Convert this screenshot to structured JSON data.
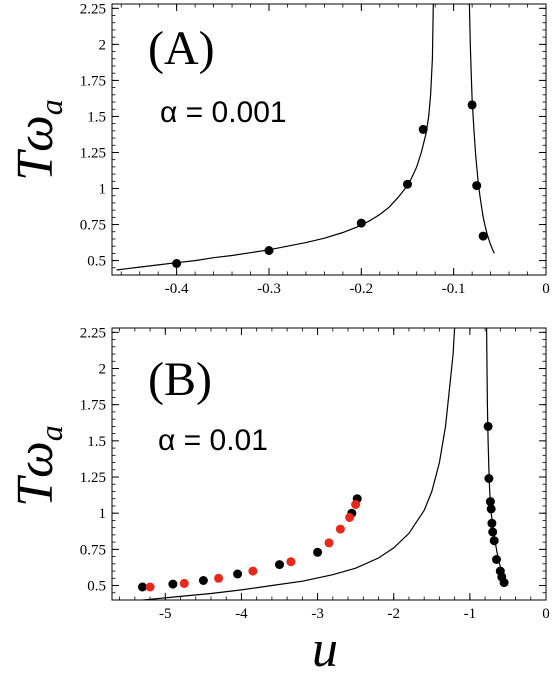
{
  "chart_data": [
    {
      "type": "line",
      "panel_label": "(A)",
      "annotation": "α = 0.001",
      "ylabel": "Tω",
      "ylabel_sub": "a",
      "xlabel": "",
      "xlim": [
        -0.47,
        0.0
      ],
      "ylim": [
        0.4,
        2.28
      ],
      "xticks": [
        -0.4,
        -0.3,
        -0.2,
        -0.1,
        0
      ],
      "xtick_labels": [
        "-0.4",
        "-0.3",
        "-0.2",
        "-0.1",
        "0"
      ],
      "yticks": [
        0.5,
        0.75,
        1,
        1.25,
        1.5,
        1.75,
        2,
        2.25
      ],
      "ytick_labels": [
        "0.5",
        "0.75",
        "1",
        "1.25",
        "1.5",
        "1.75",
        "2",
        "2.25"
      ],
      "series": [
        {
          "kind": "curve",
          "color": "#000000",
          "x": [
            -0.465,
            -0.44,
            -0.42,
            -0.4,
            -0.38,
            -0.36,
            -0.34,
            -0.32,
            -0.3,
            -0.28,
            -0.26,
            -0.24,
            -0.22,
            -0.2,
            -0.19,
            -0.18,
            -0.17,
            -0.16,
            -0.15,
            -0.145,
            -0.14,
            -0.135,
            -0.13,
            -0.127,
            -0.125,
            -0.123,
            -0.122
          ],
          "y": [
            0.435,
            0.455,
            0.47,
            0.485,
            0.5,
            0.52,
            0.535,
            0.555,
            0.575,
            0.6,
            0.625,
            0.655,
            0.695,
            0.745,
            0.78,
            0.82,
            0.87,
            0.94,
            1.02,
            1.08,
            1.15,
            1.25,
            1.38,
            1.5,
            1.65,
            1.9,
            2.28
          ]
        },
        {
          "kind": "curve",
          "color": "#000000",
          "x": [
            -0.083,
            -0.082,
            -0.081,
            -0.08,
            -0.078,
            -0.076,
            -0.074,
            -0.072,
            -0.07,
            -0.068,
            -0.066,
            -0.064,
            -0.062,
            -0.06,
            -0.058,
            -0.056
          ],
          "y": [
            2.28,
            2.0,
            1.8,
            1.62,
            1.4,
            1.22,
            1.08,
            0.97,
            0.88,
            0.8,
            0.74,
            0.69,
            0.65,
            0.61,
            0.58,
            0.55
          ]
        },
        {
          "kind": "points",
          "color": "#000000",
          "x": [
            -0.4,
            -0.3,
            -0.2,
            -0.15,
            -0.133,
            -0.08,
            -0.075,
            -0.068
          ],
          "y": [
            0.48,
            0.57,
            0.76,
            1.03,
            1.41,
            1.58,
            1.02,
            0.67
          ]
        }
      ]
    },
    {
      "type": "line",
      "panel_label": "(B)",
      "annotation": "α = 0.01",
      "ylabel": "Tω",
      "ylabel_sub": "a",
      "xlabel": "u",
      "xlim": [
        -5.7,
        0.0
      ],
      "ylim": [
        0.4,
        2.28
      ],
      "xticks": [
        -5,
        -4,
        -3,
        -2,
        -1,
        0
      ],
      "xtick_labels": [
        "-5",
        "-4",
        "-3",
        "-2",
        "-1",
        "0"
      ],
      "yticks": [
        0.5,
        0.75,
        1,
        1.25,
        1.5,
        1.75,
        2,
        2.25
      ],
      "ytick_labels": [
        "0.5",
        "0.75",
        "1",
        "1.25",
        "1.5",
        "1.75",
        "2",
        "2.25"
      ],
      "series": [
        {
          "kind": "curve",
          "color": "#000000",
          "x": [
            -5.6,
            -5.2,
            -4.8,
            -4.4,
            -4.0,
            -3.6,
            -3.2,
            -2.8,
            -2.5,
            -2.2,
            -2.0,
            -1.8,
            -1.6,
            -1.5,
            -1.4,
            -1.32,
            -1.26,
            -1.22,
            -1.2
          ],
          "y": [
            0.385,
            0.405,
            0.425,
            0.445,
            0.47,
            0.5,
            0.53,
            0.575,
            0.62,
            0.69,
            0.76,
            0.86,
            1.02,
            1.15,
            1.35,
            1.6,
            1.9,
            2.1,
            2.28
          ]
        },
        {
          "kind": "curve",
          "color": "#000000",
          "x": [
            -0.78,
            -0.775,
            -0.77,
            -0.76,
            -0.75,
            -0.74,
            -0.72,
            -0.7,
            -0.68,
            -0.66,
            -0.64,
            -0.62,
            -0.6,
            -0.58,
            -0.56,
            -0.54,
            -0.52
          ],
          "y": [
            2.28,
            2.0,
            1.75,
            1.5,
            1.3,
            1.15,
            1.0,
            0.92,
            0.84,
            0.78,
            0.72,
            0.67,
            0.63,
            0.59,
            0.56,
            0.53,
            0.5
          ]
        },
        {
          "kind": "points",
          "color": "#000000",
          "x": [
            -5.3,
            -4.9,
            -4.5,
            -4.05,
            -3.5,
            -3.0,
            -2.55,
            -2.48,
            -0.76,
            -0.75,
            -0.73,
            -0.72,
            -0.71,
            -0.7,
            -0.68,
            -0.65,
            -0.6,
            -0.58,
            -0.55
          ],
          "y": [
            0.49,
            0.51,
            0.535,
            0.58,
            0.645,
            0.73,
            1.0,
            1.1,
            1.6,
            1.24,
            1.08,
            1.03,
            0.93,
            0.87,
            0.81,
            0.68,
            0.6,
            0.56,
            0.52
          ]
        },
        {
          "kind": "points",
          "color": "#e8281a",
          "x": [
            -5.2,
            -4.75,
            -4.3,
            -3.85,
            -3.35,
            -2.85,
            -2.7,
            -2.58,
            -2.5
          ],
          "y": [
            0.49,
            0.515,
            0.55,
            0.6,
            0.665,
            0.795,
            0.89,
            0.97,
            1.06
          ]
        }
      ]
    }
  ]
}
